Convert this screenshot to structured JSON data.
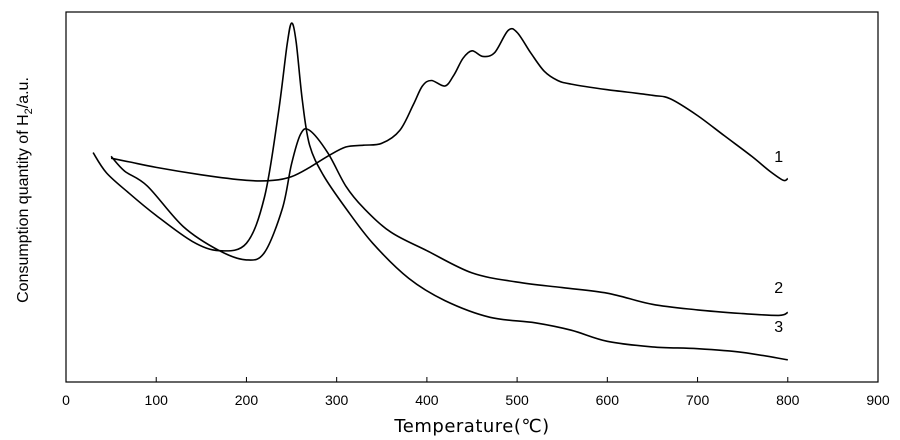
{
  "chart_data": {
    "type": "line",
    "title": "",
    "xlabel": "Temperature(℃)",
    "ylabel_main": "Consumption quantity of H",
    "ylabel_sub": "2",
    "ylabel_suffix": "/a.u.",
    "xlim": [
      0,
      900
    ],
    "ylim": [
      0,
      100
    ],
    "xticks": [
      0,
      100,
      200,
      300,
      400,
      500,
      600,
      700,
      800,
      900
    ],
    "grid": false,
    "series": [
      {
        "name": "1",
        "color": "#000000",
        "x": [
          50,
          70,
          100,
          150,
          200,
          230,
          250,
          270,
          290,
          310,
          330,
          350,
          370,
          385,
          395,
          405,
          420,
          430,
          440,
          450,
          462,
          475,
          490,
          500,
          515,
          530,
          545,
          560,
          600,
          650,
          670,
          700,
          730,
          760,
          780,
          795,
          800
        ],
        "y": [
          60.5,
          59.5,
          58.0,
          56.0,
          54.5,
          54.5,
          55.5,
          58.0,
          61.0,
          63.5,
          64.0,
          64.5,
          68.0,
          75.0,
          80.0,
          81.5,
          80.0,
          83.0,
          87.5,
          89.5,
          88.0,
          89.0,
          95.0,
          94.5,
          89.0,
          84.0,
          81.5,
          80.5,
          79.0,
          77.5,
          76.5,
          72.0,
          66.5,
          61.0,
          57.0,
          54.5,
          55.0
        ]
      },
      {
        "name": "2",
        "color": "#000000",
        "x": [
          50,
          65,
          90,
          130,
          170,
          200,
          220,
          240,
          250,
          260,
          270,
          290,
          310,
          330,
          360,
          400,
          450,
          500,
          550,
          600,
          650,
          700,
          750,
          790,
          800
        ],
        "y": [
          61.0,
          57.0,
          53.0,
          42.0,
          35.5,
          33.0,
          35.0,
          47.0,
          59.0,
          67.0,
          68.0,
          62.0,
          53.0,
          47.0,
          40.5,
          35.5,
          29.5,
          27.0,
          25.5,
          24.0,
          21.0,
          19.5,
          18.5,
          18.0,
          18.8
        ]
      },
      {
        "name": "3",
        "color": "#000000",
        "x": [
          30,
          45,
          70,
          100,
          140,
          170,
          200,
          220,
          235,
          245,
          250,
          255,
          262,
          270,
          285,
          310,
          340,
          380,
          420,
          470,
          520,
          560,
          600,
          650,
          700,
          750,
          800
        ],
        "y": [
          62.0,
          56.5,
          51.0,
          45.0,
          38.0,
          35.5,
          37.5,
          50.0,
          72.0,
          91.0,
          97.0,
          92.0,
          76.0,
          64.0,
          56.0,
          47.0,
          37.5,
          28.0,
          22.0,
          17.5,
          16.0,
          14.0,
          11.0,
          9.5,
          9.0,
          8.0,
          6.0
        ]
      }
    ],
    "label_positions": [
      {
        "text": "1",
        "x": 790,
        "y": 59.5
      },
      {
        "text": "2",
        "x": 790,
        "y": 24.0
      },
      {
        "text": "3",
        "x": 790,
        "y": 13.5
      }
    ]
  }
}
